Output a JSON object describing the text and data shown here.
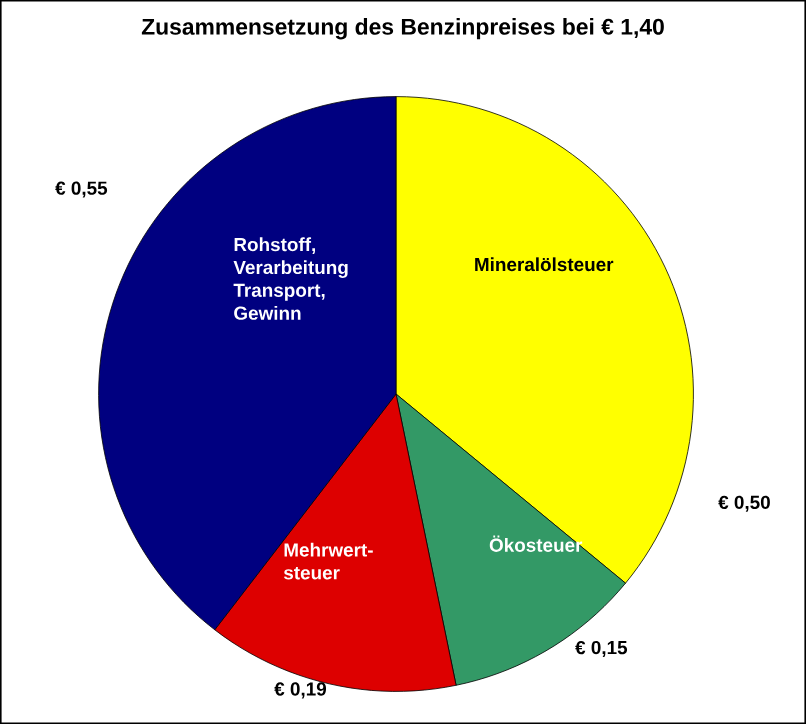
{
  "chart_data": {
    "type": "pie",
    "title": "Zusammensetzung des Benzinpreises bei € 1,40",
    "categories": [
      "Mineralölsteuer",
      "Ökosteuer",
      "Mehrwert-steuer",
      "Rohstoff, Verarbeitung Transport, Gewinn"
    ],
    "values": [
      0.5,
      0.15,
      0.19,
      0.55
    ],
    "colors": [
      "#ffff00",
      "#339966",
      "#dd0000",
      "#000080"
    ],
    "value_labels": [
      "€ 0,50",
      "€ 0,15",
      "€ 0,19",
      "€ 0,55"
    ]
  }
}
